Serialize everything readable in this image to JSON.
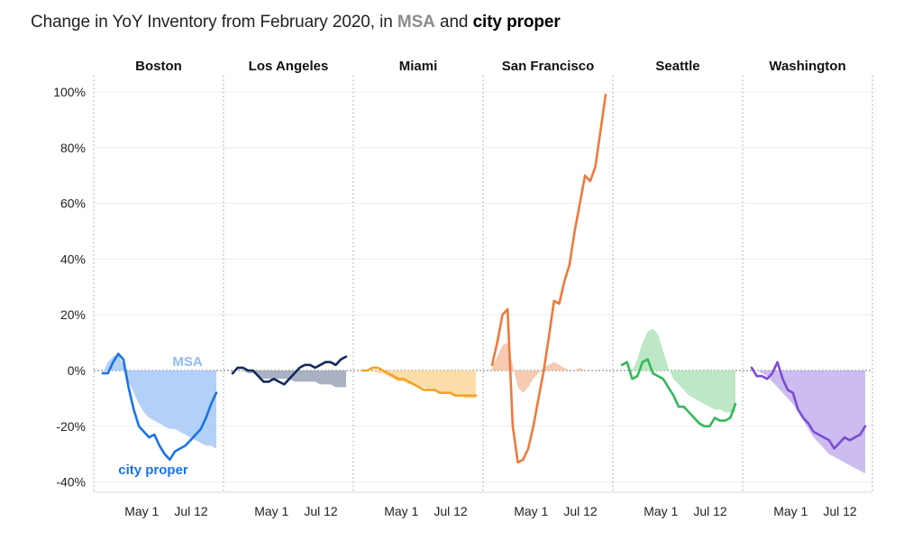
{
  "title": {
    "prefix": "Change in YoY Inventory from February 2020, in ",
    "msa": "MSA",
    "middle": " and ",
    "city": "city proper"
  },
  "chart_data": {
    "type": "area",
    "title": "Change in YoY Inventory from February 2020, in MSA and city proper",
    "ylim": [
      -0.42,
      1.02
    ],
    "yticks": [
      -0.4,
      -0.2,
      0,
      0.2,
      0.4,
      0.6,
      0.8,
      1.0
    ],
    "ytick_labels": [
      "-40%",
      "-20%",
      "0%",
      "20%",
      "40%",
      "60%",
      "80%",
      "100%"
    ],
    "xticks": [
      "May 1",
      "Jul 12"
    ],
    "annotations": {
      "msa": "MSA",
      "city": "city proper"
    },
    "panels": [
      {
        "name": "Boston",
        "color": "#1a73e8",
        "fill": "#a6c8f7",
        "msa": [
          -0.01,
          0.03,
          0.05,
          0.06,
          0.02,
          -0.04,
          -0.08,
          -0.12,
          -0.15,
          -0.17,
          -0.18,
          -0.19,
          -0.2,
          -0.21,
          -0.21,
          -0.22,
          -0.23,
          -0.24,
          -0.25,
          -0.26,
          -0.27,
          -0.27,
          -0.28
        ],
        "city": [
          -0.01,
          -0.01,
          0.03,
          0.06,
          0.04,
          -0.06,
          -0.14,
          -0.2,
          -0.22,
          -0.24,
          -0.23,
          -0.27,
          -0.3,
          -0.32,
          -0.29,
          -0.28,
          -0.27,
          -0.25,
          -0.23,
          -0.21,
          -0.17,
          -0.12,
          -0.08
        ]
      },
      {
        "name": "Los Angeles",
        "color": "#13295e",
        "fill": "#9aa3b8",
        "msa": [
          0.0,
          0.0,
          0.0,
          -0.01,
          -0.01,
          -0.02,
          -0.03,
          -0.03,
          -0.03,
          -0.03,
          -0.03,
          -0.03,
          -0.04,
          -0.04,
          -0.04,
          -0.04,
          -0.04,
          -0.05,
          -0.05,
          -0.05,
          -0.06,
          -0.06,
          -0.06
        ],
        "city": [
          -0.01,
          0.01,
          0.01,
          0.0,
          0.0,
          -0.02,
          -0.04,
          -0.04,
          -0.03,
          -0.04,
          -0.05,
          -0.03,
          -0.01,
          0.01,
          0.02,
          0.02,
          0.01,
          0.02,
          0.03,
          0.03,
          0.02,
          0.04,
          0.05
        ]
      },
      {
        "name": "Miami",
        "color": "#f0a425",
        "fill": "#fbd79a",
        "msa": [
          0.0,
          0.0,
          0.0,
          -0.01,
          -0.01,
          -0.02,
          -0.03,
          -0.04,
          -0.04,
          -0.05,
          -0.05,
          -0.06,
          -0.06,
          -0.07,
          -0.07,
          -0.08,
          -0.08,
          -0.08,
          -0.09,
          -0.09,
          -0.1,
          -0.1,
          -0.1
        ],
        "city": [
          0.0,
          0.0,
          0.01,
          0.01,
          0.0,
          -0.01,
          -0.02,
          -0.03,
          -0.03,
          -0.04,
          -0.05,
          -0.06,
          -0.07,
          -0.07,
          -0.07,
          -0.08,
          -0.08,
          -0.08,
          -0.09,
          -0.09,
          -0.09,
          -0.09,
          -0.09
        ]
      },
      {
        "name": "San Francisco",
        "color": "#ed7a3c",
        "fill": "#f6c1a5",
        "msa": [
          0.01,
          0.05,
          0.09,
          0.1,
          0.02,
          -0.06,
          -0.08,
          -0.06,
          -0.03,
          -0.01,
          0.01,
          0.02,
          0.03,
          0.02,
          0.01,
          0.0,
          0.0,
          0.01,
          0.0,
          0.0,
          0.0,
          0.0,
          0.0
        ],
        "city": [
          0.02,
          0.1,
          0.2,
          0.22,
          -0.2,
          -0.33,
          -0.32,
          -0.28,
          -0.2,
          -0.1,
          0.0,
          0.12,
          0.25,
          0.24,
          0.32,
          0.38,
          0.5,
          0.6,
          0.7,
          0.68,
          0.73,
          0.86,
          0.99
        ]
      },
      {
        "name": "Seattle",
        "color": "#34b85a",
        "fill": "#b1e3bc",
        "msa": [
          0.0,
          0.0,
          0.0,
          0.04,
          0.1,
          0.14,
          0.15,
          0.13,
          0.07,
          0.01,
          -0.03,
          -0.05,
          -0.07,
          -0.09,
          -0.1,
          -0.11,
          -0.12,
          -0.13,
          -0.14,
          -0.14,
          -0.15,
          -0.15,
          -0.15
        ],
        "city": [
          0.02,
          0.03,
          -0.03,
          -0.02,
          0.03,
          0.04,
          -0.01,
          -0.02,
          -0.03,
          -0.06,
          -0.09,
          -0.13,
          -0.13,
          -0.15,
          -0.17,
          -0.19,
          -0.2,
          -0.2,
          -0.17,
          -0.18,
          -0.18,
          -0.17,
          -0.12
        ]
      },
      {
        "name": "Washington",
        "color": "#7b4cd6",
        "fill": "#c3b0ec",
        "msa": [
          0.0,
          0.0,
          -0.01,
          -0.02,
          -0.04,
          -0.06,
          -0.08,
          -0.1,
          -0.12,
          -0.15,
          -0.18,
          -0.21,
          -0.24,
          -0.26,
          -0.28,
          -0.3,
          -0.31,
          -0.32,
          -0.33,
          -0.34,
          -0.35,
          -0.36,
          -0.37
        ],
        "city": [
          0.01,
          -0.02,
          -0.02,
          -0.03,
          -0.01,
          0.03,
          -0.03,
          -0.07,
          -0.08,
          -0.14,
          -0.17,
          -0.19,
          -0.22,
          -0.23,
          -0.24,
          -0.25,
          -0.28,
          -0.26,
          -0.24,
          -0.25,
          -0.24,
          -0.23,
          -0.2
        ]
      }
    ]
  }
}
